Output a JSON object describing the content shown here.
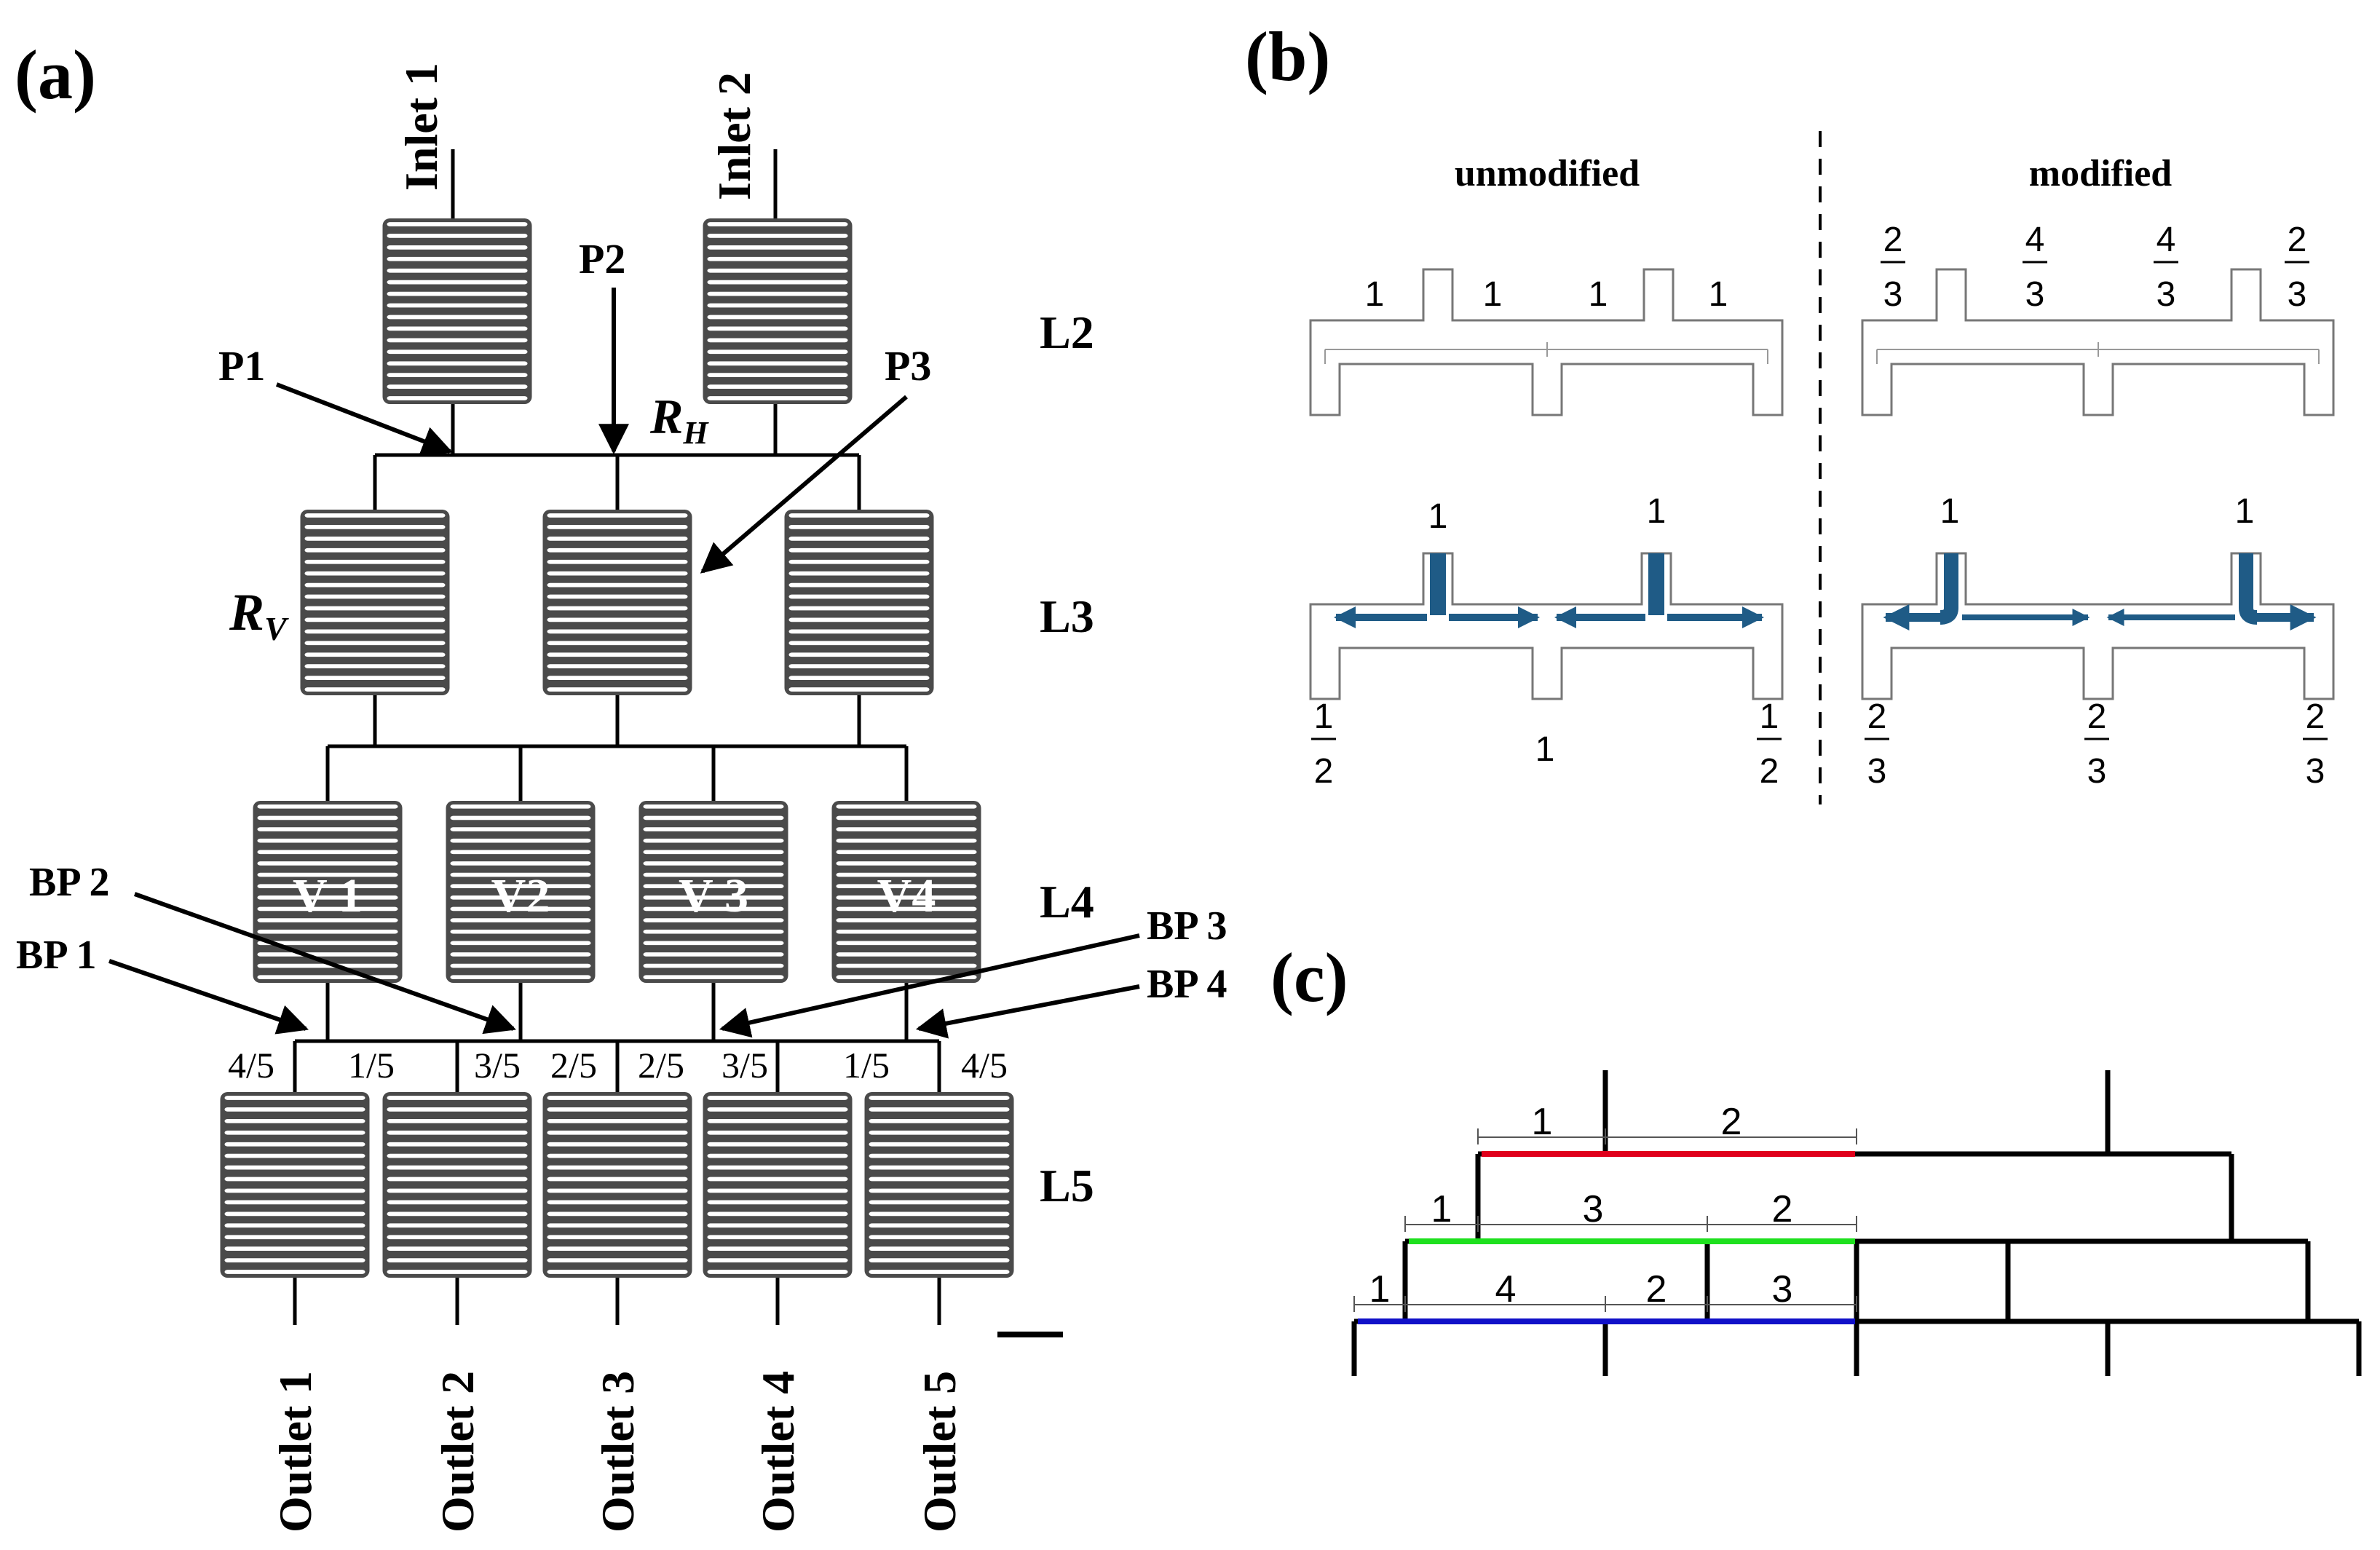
{
  "figure": {
    "panel_a": {
      "label": "(a)",
      "inlets": [
        "Inlet 1",
        "Inlet 2"
      ],
      "points": {
        "p1": "P1",
        "p2": "P2",
        "p3": "P3"
      },
      "resistances": {
        "rh": "R",
        "rh_sub": "H",
        "rv": "R",
        "rv_sub": "V"
      },
      "levels": [
        "L2",
        "L3",
        "L4",
        "L5"
      ],
      "valves": [
        "V 1",
        "V2",
        "V 3",
        "V4"
      ],
      "branch_points": [
        "BP 1",
        "BP 2",
        "BP 3",
        "BP 4"
      ],
      "fractions": [
        "4/5",
        "1/5",
        "3/5",
        "2/5",
        "2/5",
        "3/5",
        "1/5",
        "4/5"
      ],
      "outlets": [
        "Outlet 1",
        "Outlet 2",
        "Outlet 3",
        "Outlet 4",
        "Outlet 5"
      ]
    },
    "panel_b": {
      "label": "(b)",
      "headers": {
        "unmodified": "unmodified",
        "modified": "modified"
      },
      "unmodified_top": [
        "1",
        "1",
        "1",
        "1"
      ],
      "modified_top": [
        {
          "num": "2",
          "den": "3"
        },
        {
          "num": "4",
          "den": "3"
        },
        {
          "num": "4",
          "den": "3"
        },
        {
          "num": "2",
          "den": "3"
        }
      ],
      "unmodified_inlet_labels": [
        "1",
        "1"
      ],
      "modified_inlet_labels": [
        "1",
        "1"
      ],
      "unmodified_bottom": [
        {
          "num": "1",
          "den": "2"
        },
        {
          "text": "1"
        },
        {
          "num": "1",
          "den": "2"
        }
      ],
      "modified_bottom": [
        {
          "num": "2",
          "den": "3"
        },
        {
          "num": "2",
          "den": "3"
        },
        {
          "num": "2",
          "den": "3"
        }
      ]
    },
    "panel_c": {
      "label": "(c)",
      "red_segments": [
        "1",
        "2"
      ],
      "green_segments": [
        "1",
        "3",
        "2"
      ],
      "blue_segments": [
        "1",
        "4",
        "2",
        "3"
      ],
      "colors": {
        "red": "#e0001b",
        "green": "#1ee01e",
        "blue": "#1010c8",
        "flow": "#1f5b86"
      }
    }
  }
}
